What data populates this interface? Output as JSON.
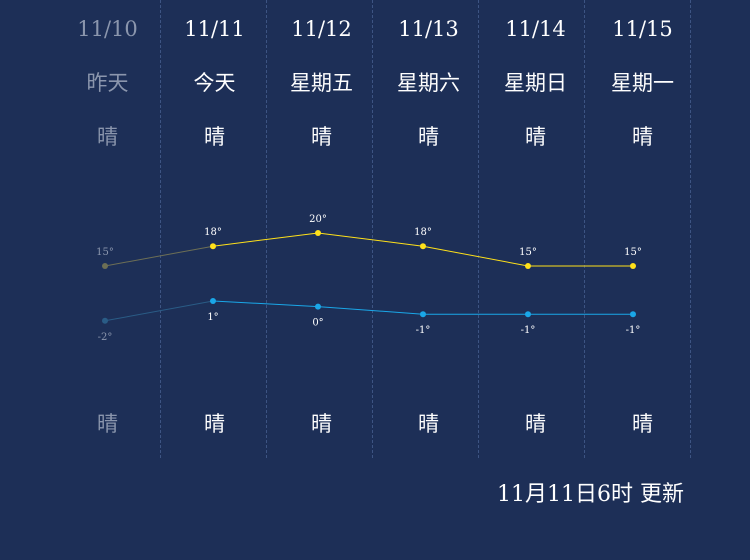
{
  "forecast": {
    "days": [
      {
        "date": "11/10",
        "weekday": "昨天",
        "day_condition": "晴",
        "night_condition": "晴",
        "high": "15°",
        "low": "-2°"
      },
      {
        "date": "11/11",
        "weekday": "今天",
        "day_condition": "晴",
        "night_condition": "晴",
        "high": "18°",
        "low": "1°"
      },
      {
        "date": "11/12",
        "weekday": "星期五",
        "day_condition": "晴",
        "night_condition": "晴",
        "high": "20°",
        "low": "0°"
      },
      {
        "date": "11/13",
        "weekday": "星期六",
        "day_condition": "晴",
        "night_condition": "晴",
        "high": "18°",
        "low": "-1°"
      },
      {
        "date": "11/14",
        "weekday": "星期日",
        "day_condition": "晴",
        "night_condition": "晴",
        "high": "15°",
        "low": "-1°"
      },
      {
        "date": "11/15",
        "weekday": "星期一",
        "day_condition": "晴",
        "night_condition": "晴",
        "high": "15°",
        "low": "-1°"
      }
    ]
  },
  "chart_data": {
    "type": "line",
    "categories": [
      "11/10",
      "11/11",
      "11/12",
      "11/13",
      "11/14",
      "11/15"
    ],
    "series": [
      {
        "values": [
          15,
          18,
          20,
          18,
          15,
          15
        ],
        "color": "#ffe11a",
        "past_color": "#6d6f55"
      },
      {
        "values": [
          -2,
          1,
          0,
          -1,
          -1,
          -1
        ],
        "color": "#1aa7e8",
        "past_color": "#2a5c86"
      }
    ]
  },
  "footer": {
    "updated": "11月11日6时 更新"
  },
  "colors": {
    "background": "#1d2f57",
    "high_line": "#ffe11a",
    "low_line": "#1aa7e8",
    "past_text": "#8b96ad",
    "divider": "#3d5483"
  }
}
